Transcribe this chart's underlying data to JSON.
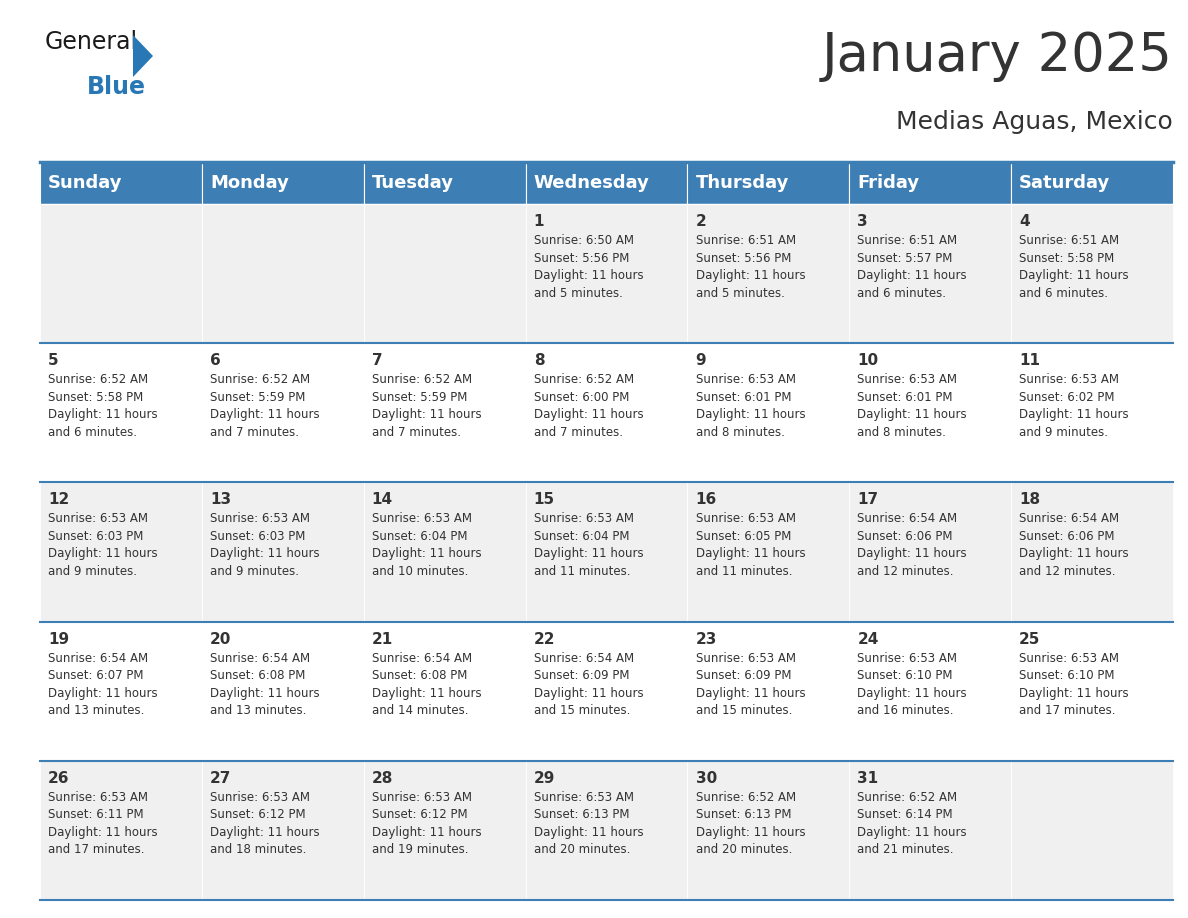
{
  "title": "January 2025",
  "subtitle": "Medias Aguas, Mexico",
  "header_color": "#3d7eb5",
  "header_text_color": "#ffffff",
  "cell_bg_light": "#f0f0f0",
  "cell_bg_white": "#ffffff",
  "border_color": "#3d7eb5",
  "text_color": "#333333",
  "day_headers": [
    "Sunday",
    "Monday",
    "Tuesday",
    "Wednesday",
    "Thursday",
    "Friday",
    "Saturday"
  ],
  "calendar": [
    [
      {
        "day": "",
        "info": ""
      },
      {
        "day": "",
        "info": ""
      },
      {
        "day": "",
        "info": ""
      },
      {
        "day": "1",
        "info": "Sunrise: 6:50 AM\nSunset: 5:56 PM\nDaylight: 11 hours\nand 5 minutes."
      },
      {
        "day": "2",
        "info": "Sunrise: 6:51 AM\nSunset: 5:56 PM\nDaylight: 11 hours\nand 5 minutes."
      },
      {
        "day": "3",
        "info": "Sunrise: 6:51 AM\nSunset: 5:57 PM\nDaylight: 11 hours\nand 6 minutes."
      },
      {
        "day": "4",
        "info": "Sunrise: 6:51 AM\nSunset: 5:58 PM\nDaylight: 11 hours\nand 6 minutes."
      }
    ],
    [
      {
        "day": "5",
        "info": "Sunrise: 6:52 AM\nSunset: 5:58 PM\nDaylight: 11 hours\nand 6 minutes."
      },
      {
        "day": "6",
        "info": "Sunrise: 6:52 AM\nSunset: 5:59 PM\nDaylight: 11 hours\nand 7 minutes."
      },
      {
        "day": "7",
        "info": "Sunrise: 6:52 AM\nSunset: 5:59 PM\nDaylight: 11 hours\nand 7 minutes."
      },
      {
        "day": "8",
        "info": "Sunrise: 6:52 AM\nSunset: 6:00 PM\nDaylight: 11 hours\nand 7 minutes."
      },
      {
        "day": "9",
        "info": "Sunrise: 6:53 AM\nSunset: 6:01 PM\nDaylight: 11 hours\nand 8 minutes."
      },
      {
        "day": "10",
        "info": "Sunrise: 6:53 AM\nSunset: 6:01 PM\nDaylight: 11 hours\nand 8 minutes."
      },
      {
        "day": "11",
        "info": "Sunrise: 6:53 AM\nSunset: 6:02 PM\nDaylight: 11 hours\nand 9 minutes."
      }
    ],
    [
      {
        "day": "12",
        "info": "Sunrise: 6:53 AM\nSunset: 6:03 PM\nDaylight: 11 hours\nand 9 minutes."
      },
      {
        "day": "13",
        "info": "Sunrise: 6:53 AM\nSunset: 6:03 PM\nDaylight: 11 hours\nand 9 minutes."
      },
      {
        "day": "14",
        "info": "Sunrise: 6:53 AM\nSunset: 6:04 PM\nDaylight: 11 hours\nand 10 minutes."
      },
      {
        "day": "15",
        "info": "Sunrise: 6:53 AM\nSunset: 6:04 PM\nDaylight: 11 hours\nand 11 minutes."
      },
      {
        "day": "16",
        "info": "Sunrise: 6:53 AM\nSunset: 6:05 PM\nDaylight: 11 hours\nand 11 minutes."
      },
      {
        "day": "17",
        "info": "Sunrise: 6:54 AM\nSunset: 6:06 PM\nDaylight: 11 hours\nand 12 minutes."
      },
      {
        "day": "18",
        "info": "Sunrise: 6:54 AM\nSunset: 6:06 PM\nDaylight: 11 hours\nand 12 minutes."
      }
    ],
    [
      {
        "day": "19",
        "info": "Sunrise: 6:54 AM\nSunset: 6:07 PM\nDaylight: 11 hours\nand 13 minutes."
      },
      {
        "day": "20",
        "info": "Sunrise: 6:54 AM\nSunset: 6:08 PM\nDaylight: 11 hours\nand 13 minutes."
      },
      {
        "day": "21",
        "info": "Sunrise: 6:54 AM\nSunset: 6:08 PM\nDaylight: 11 hours\nand 14 minutes."
      },
      {
        "day": "22",
        "info": "Sunrise: 6:54 AM\nSunset: 6:09 PM\nDaylight: 11 hours\nand 15 minutes."
      },
      {
        "day": "23",
        "info": "Sunrise: 6:53 AM\nSunset: 6:09 PM\nDaylight: 11 hours\nand 15 minutes."
      },
      {
        "day": "24",
        "info": "Sunrise: 6:53 AM\nSunset: 6:10 PM\nDaylight: 11 hours\nand 16 minutes."
      },
      {
        "day": "25",
        "info": "Sunrise: 6:53 AM\nSunset: 6:10 PM\nDaylight: 11 hours\nand 17 minutes."
      }
    ],
    [
      {
        "day": "26",
        "info": "Sunrise: 6:53 AM\nSunset: 6:11 PM\nDaylight: 11 hours\nand 17 minutes."
      },
      {
        "day": "27",
        "info": "Sunrise: 6:53 AM\nSunset: 6:12 PM\nDaylight: 11 hours\nand 18 minutes."
      },
      {
        "day": "28",
        "info": "Sunrise: 6:53 AM\nSunset: 6:12 PM\nDaylight: 11 hours\nand 19 minutes."
      },
      {
        "day": "29",
        "info": "Sunrise: 6:53 AM\nSunset: 6:13 PM\nDaylight: 11 hours\nand 20 minutes."
      },
      {
        "day": "30",
        "info": "Sunrise: 6:52 AM\nSunset: 6:13 PM\nDaylight: 11 hours\nand 20 minutes."
      },
      {
        "day": "31",
        "info": "Sunrise: 6:52 AM\nSunset: 6:14 PM\nDaylight: 11 hours\nand 21 minutes."
      },
      {
        "day": "",
        "info": ""
      }
    ]
  ],
  "logo_color_general": "#1a1a1a",
  "logo_color_blue": "#2878b5",
  "title_fontsize": 38,
  "subtitle_fontsize": 18,
  "header_fontsize": 13,
  "day_number_fontsize": 11,
  "info_fontsize": 8.5
}
